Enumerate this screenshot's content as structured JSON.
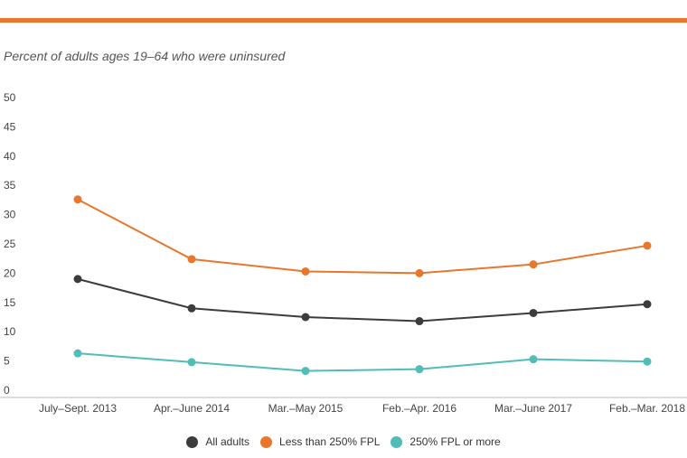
{
  "header": {
    "subtitle": "Percent of adults ages 19–64 who were uninsured"
  },
  "chart_data": {
    "type": "line",
    "title": "",
    "xlabel": "",
    "ylabel": "",
    "categories": [
      "July–Sept. 2013",
      "Apr.–June 2014",
      "Mar.–May 2015",
      "Feb.–Apr. 2016",
      "Mar.–June 2017",
      "Feb.–Mar. 2018"
    ],
    "ylim": [
      0,
      50
    ],
    "yticks": [
      "0",
      "5",
      "10",
      "15",
      "20",
      "25",
      "30",
      "35",
      "40",
      "45",
      "50"
    ],
    "grid": false,
    "legend_position": "bottom",
    "series": [
      {
        "name": "All adults",
        "color": "#3c3c3c",
        "values": [
          19.0,
          14.0,
          12.5,
          11.8,
          13.2,
          14.7
        ]
      },
      {
        "name": "Less than 250% FPL",
        "color": "#e8762c",
        "values": [
          32.6,
          22.4,
          20.3,
          20.0,
          21.5,
          24.7
        ]
      },
      {
        "name": "250% FPL or more",
        "color": "#52bdb6",
        "values": [
          6.3,
          4.8,
          3.3,
          3.6,
          5.3,
          4.9
        ]
      }
    ]
  }
}
